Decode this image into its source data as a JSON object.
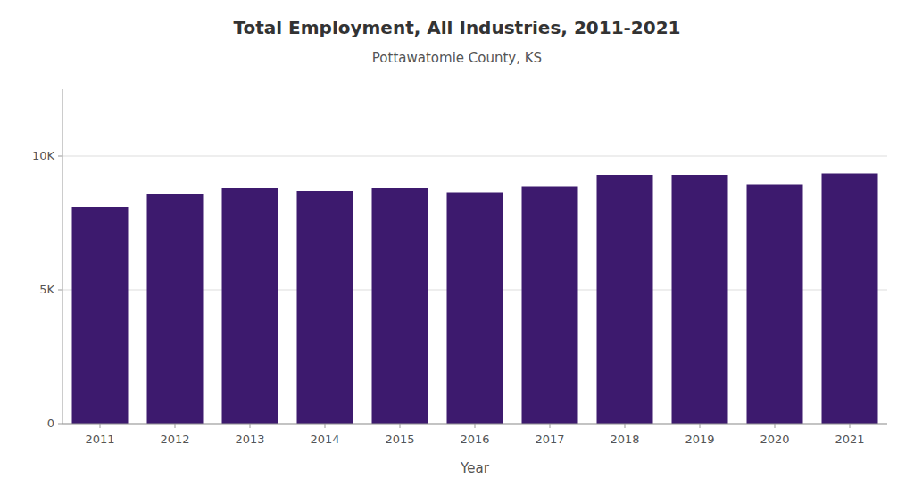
{
  "chart_data": {
    "type": "bar",
    "title": "Total Employment, All Industries, 2011-2021",
    "subtitle": "Pottawatomie County, KS",
    "x_label": "Year",
    "categories": [
      "2011",
      "2012",
      "2013",
      "2014",
      "2015",
      "2016",
      "2017",
      "2018",
      "2019",
      "2020",
      "2021"
    ],
    "values": [
      8100,
      8600,
      8800,
      8700,
      8800,
      8650,
      8850,
      9300,
      9300,
      8950,
      9350
    ],
    "color": "#3d1a6e",
    "ylim": [
      0,
      12500
    ],
    "yticks": [
      0,
      {
        "value": 5000,
        "label": "5K"
      },
      {
        "value": 10000,
        "label": "10K"
      }
    ],
    "grid": true
  }
}
